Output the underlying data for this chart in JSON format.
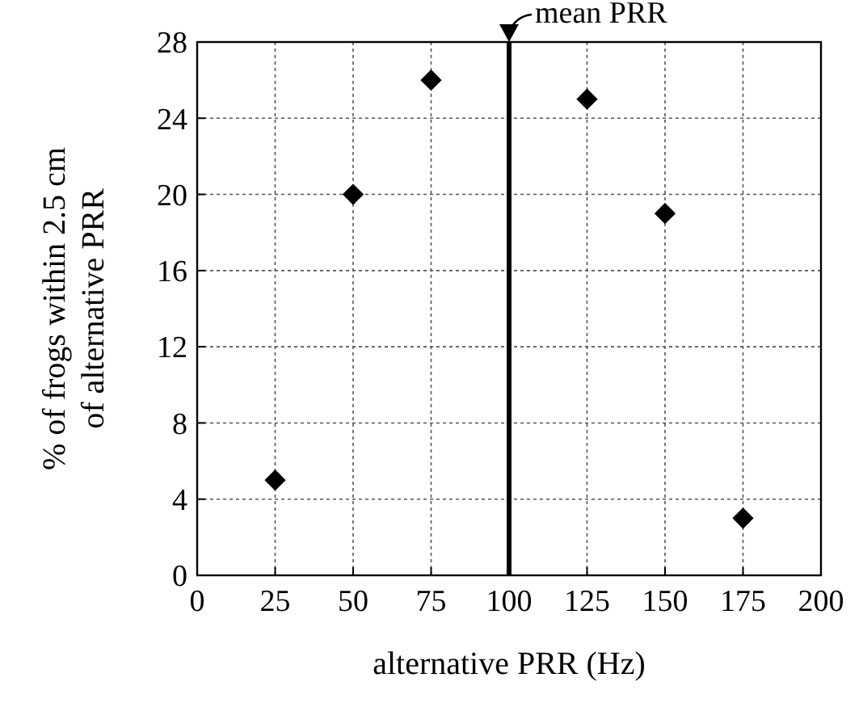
{
  "chart_data": {
    "type": "scatter",
    "xlabel": "alternative PRR (Hz)",
    "ylabel": "% of frogs within 2.5 cm\nof alternative PRR",
    "x": [
      25,
      50,
      75,
      125,
      150,
      175
    ],
    "series": [
      {
        "color": "#000000",
        "values": [
          5,
          20,
          26,
          25,
          19,
          3
        ]
      }
    ],
    "xlim": [
      0,
      200
    ],
    "xticks": [
      0,
      25,
      50,
      75,
      100,
      125,
      150,
      175,
      200
    ],
    "ylim": [
      0,
      28
    ],
    "yticks": [
      0,
      4,
      8,
      12,
      16,
      20,
      24,
      28
    ],
    "grid": true,
    "marker": "diamond",
    "ref_lines": [
      {
        "axis": "x",
        "value": 100,
        "label": "mean PRR",
        "color": "#000000"
      }
    ]
  }
}
